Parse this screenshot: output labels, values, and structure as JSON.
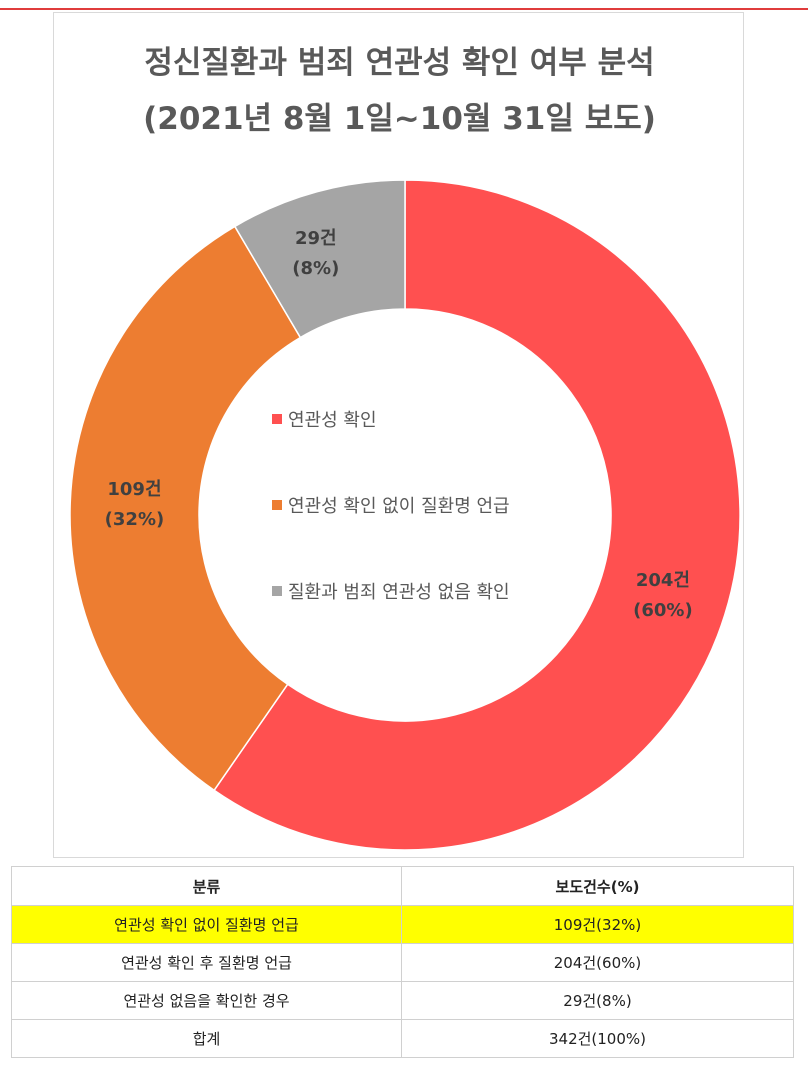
{
  "title_line1": "정신질환과 범죄 연관성 확인 여부 분석",
  "title_line2": "(2021년 8월 1일~10월 31일 보도)",
  "chart_data": {
    "type": "pie",
    "donut": true,
    "title": "정신질환과 범죄 연관성 확인 여부 분석 (2021년 8월 1일~10월 31일 보도)",
    "legend_position": "center",
    "slices": [
      {
        "name": "연관성 확인",
        "value": 204,
        "percent": 60,
        "label_line1": "204건",
        "label_line2": "(60%)",
        "color": "#ff5050"
      },
      {
        "name": "연관성 확인 없이 질환명 언급",
        "value": 109,
        "percent": 32,
        "label_line1": "109건",
        "label_line2": "(32%)",
        "color": "#ed7d31"
      },
      {
        "name": "질환과 범죄 연관성 없음 확인",
        "value": 29,
        "percent": 8,
        "label_line1": "29건",
        "label_line2": "(8%)",
        "color": "#a5a5a5"
      }
    ]
  },
  "table": {
    "headers": [
      "분류",
      "보도건수(%)"
    ],
    "rows": [
      {
        "category": "연관성 확인 없이 질환명 언급",
        "count": "109건(32%)",
        "highlight": true
      },
      {
        "category": "연관성 확인 후 질환명 언급",
        "count": "204건(60%)",
        "highlight": false
      },
      {
        "category": "연관성 없음을 확인한 경우",
        "count": "29건(8%)",
        "highlight": false
      },
      {
        "category": "합계",
        "count": "342건(100%)",
        "highlight": false
      }
    ]
  },
  "colors": {
    "accent_line": "#e03c3c",
    "title": "#595959",
    "highlight": "#ffff00"
  }
}
